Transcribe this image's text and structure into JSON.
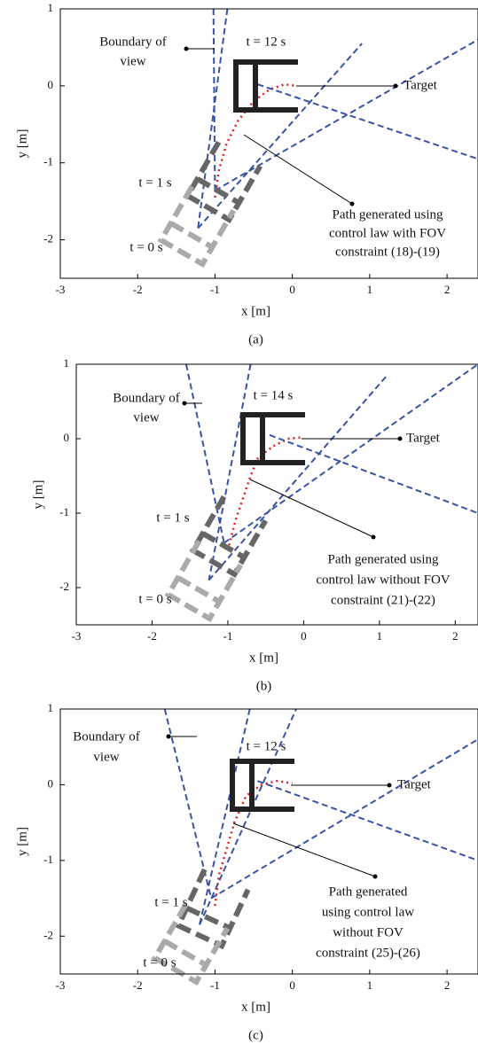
{
  "chart_data": [
    {
      "type": "line",
      "caption": "(a)",
      "xlabel": "x [m]",
      "ylabel": "y [m]",
      "xlim": [
        -3,
        2.4
      ],
      "ylim": [
        -2.5,
        1
      ],
      "xticks": [
        -3,
        -2,
        -1,
        0,
        1,
        2
      ],
      "yticks": [
        -2,
        -1,
        0,
        1
      ],
      "annotations": {
        "boundary": [
          "Boundary of",
          "view"
        ],
        "t_end": "t = 12 s",
        "t_1": "t = 1 s",
        "t_0": "t = 0 s",
        "target": "Target",
        "path_label": [
          "Path generated using",
          "control law with FOV",
          "constraint (18)-(19)"
        ]
      },
      "series": [
        {
          "color": "#e02020",
          "style": "dotted",
          "x": [
            -1.0,
            -0.95,
            -0.85,
            -0.7,
            -0.5,
            -0.3,
            -0.1,
            0.05
          ],
          "values": [
            -1.45,
            -1.1,
            -0.75,
            -0.45,
            -0.2,
            -0.05,
            0.02,
            0
          ]
        },
        {
          "color": "#3a53a4",
          "style": "dashed",
          "x": [
            -1.02,
            -1.0
          ],
          "values": [
            1,
            -1.36
          ]
        },
        {
          "color": "#3a53a4",
          "style": "dashed",
          "x": [
            -0.84,
            -1.22
          ],
          "values": [
            1,
            -1.85
          ]
        },
        {
          "color": "#3a53a4",
          "style": "dashed",
          "x": [
            -1.22,
            0.9
          ],
          "values": [
            -1.85,
            0.55
          ]
        },
        {
          "color": "#3a53a4",
          "style": "dashed",
          "x": [
            -1.0,
            2.4
          ],
          "values": [
            -1.36,
            0.6
          ]
        },
        {
          "color": "#3a53a4",
          "style": "dashed",
          "x": [
            -0.45,
            2.4
          ],
          "values": [
            0.02,
            -0.95
          ]
        }
      ]
    },
    {
      "type": "line",
      "caption": "(b)",
      "xlabel": "x [m]",
      "ylabel": "y [m]",
      "xlim": [
        -3,
        2.3
      ],
      "ylim": [
        -2.5,
        1
      ],
      "xticks": [
        -3,
        -2,
        -1,
        0,
        1,
        2
      ],
      "yticks": [
        -2,
        -1,
        0,
        1
      ],
      "annotations": {
        "boundary": [
          "Boundary of",
          "view"
        ],
        "t_end": "t = 14 s",
        "t_1": "t = 1 s",
        "t_0": "t = 0 s",
        "target": "Target",
        "path_label": [
          "Path generated using",
          "control law without FOV",
          "constraint (21)-(22)"
        ]
      },
      "series": [
        {
          "color": "#e02020",
          "style": "dotted",
          "x": [
            -1.0,
            -0.9,
            -0.8,
            -0.7,
            -0.6,
            -0.4,
            -0.2,
            0.0
          ],
          "values": [
            -1.5,
            -1.1,
            -0.8,
            -0.5,
            -0.25,
            -0.1,
            0.0,
            0.02
          ]
        },
        {
          "color": "#3a53a4",
          "style": "dashed",
          "x": [
            -1.55,
            -1.05
          ],
          "values": [
            1,
            -1.4
          ]
        },
        {
          "color": "#3a53a4",
          "style": "dashed",
          "x": [
            -0.7,
            -1.25
          ],
          "values": [
            1,
            -1.9
          ]
        },
        {
          "color": "#3a53a4",
          "style": "dashed",
          "x": [
            -1.25,
            1.1
          ],
          "values": [
            -1.9,
            0.85
          ]
        },
        {
          "color": "#3a53a4",
          "style": "dashed",
          "x": [
            -1.05,
            2.3
          ],
          "values": [
            -1.4,
            1
          ]
        },
        {
          "color": "#3a53a4",
          "style": "dashed",
          "x": [
            -0.45,
            2.3
          ],
          "values": [
            0.05,
            -1.0
          ]
        }
      ]
    },
    {
      "type": "line",
      "caption": "(c)",
      "xlabel": "x [m]",
      "ylabel": "y [m]",
      "xlim": [
        -3,
        2.4
      ],
      "ylim": [
        -2.5,
        1
      ],
      "xticks": [
        -3,
        -2,
        -1,
        0,
        1,
        2
      ],
      "yticks": [
        -2,
        -1,
        0,
        1
      ],
      "annotations": {
        "boundary": [
          "Boundary of",
          "view"
        ],
        "t_end": "t = 12 s",
        "t_1": "t = 1 s",
        "t_0": "t = 0 s",
        "target": "Target",
        "path_label": [
          "Path generated",
          "using control law",
          "without FOV",
          "constraint (25)-(26)"
        ]
      },
      "series": [
        {
          "color": "#e02020",
          "style": "dotted",
          "x": [
            -1.0,
            -0.95,
            -0.85,
            -0.75,
            -0.6,
            -0.4,
            -0.2,
            0.0
          ],
          "values": [
            -1.6,
            -1.2,
            -0.85,
            -0.5,
            -0.15,
            0.0,
            0.05,
            0.02
          ]
        },
        {
          "color": "#3a53a4",
          "style": "dashed",
          "x": [
            -1.65,
            -1.05
          ],
          "values": [
            1,
            -1.5
          ]
        },
        {
          "color": "#3a53a4",
          "style": "dashed",
          "x": [
            -0.55,
            -1.2
          ],
          "values": [
            1,
            -1.85
          ]
        },
        {
          "color": "#3a53a4",
          "style": "dashed",
          "x": [
            -1.2,
            0.05
          ],
          "values": [
            -1.85,
            1
          ]
        },
        {
          "color": "#3a53a4",
          "style": "dashed",
          "x": [
            -1.05,
            2.4
          ],
          "values": [
            -1.5,
            0.6
          ]
        },
        {
          "color": "#3a53a4",
          "style": "dashed",
          "x": [
            -0.45,
            2.4
          ],
          "values": [
            0.05,
            -1.0
          ]
        }
      ]
    }
  ]
}
